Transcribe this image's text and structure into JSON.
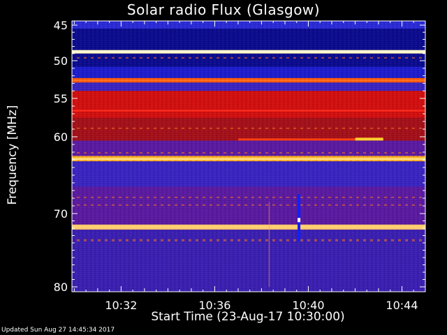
{
  "chart_data": {
    "type": "heatmap",
    "title": "Solar radio Flux (Glasgow)",
    "xlabel": "Start Time (23-Aug-17 10:30:00)",
    "ylabel": "Frequency [MHz]",
    "x_ticks": [
      "10:32",
      "10:36",
      "10:40",
      "10:44"
    ],
    "x_tick_minutes": [
      32,
      36,
      40,
      44
    ],
    "xlim_minutes": [
      29.9,
      45.0
    ],
    "y_ticks": [
      "45",
      "50",
      "55",
      "60",
      "70",
      "80"
    ],
    "y_tick_values": [
      45,
      50,
      55,
      60,
      70,
      80
    ],
    "ylim_mhz": [
      44.5,
      80.2
    ],
    "y_scale": "nonlinear (compressed at higher frequency)",
    "grid": false,
    "colormap": "blue-red-yellow-white",
    "bands": [
      {
        "from": 44.5,
        "to": 45.5,
        "level": "medium-blue"
      },
      {
        "from": 45.5,
        "to": 48.5,
        "level": "dark-blue"
      },
      {
        "from": 48.5,
        "to": 49.0,
        "level": "bright-white"
      },
      {
        "from": 49.0,
        "to": 50.8,
        "level": "dark-blue"
      },
      {
        "from": 50.8,
        "to": 52.3,
        "level": "blue"
      },
      {
        "from": 52.3,
        "to": 52.9,
        "level": "orange"
      },
      {
        "from": 52.9,
        "to": 54.0,
        "level": "blue-purple"
      },
      {
        "from": 54.0,
        "to": 57.5,
        "level": "red"
      },
      {
        "from": 57.5,
        "to": 60.5,
        "level": "dark-red"
      },
      {
        "from": 60.5,
        "to": 62.5,
        "level": "purple"
      },
      {
        "from": 62.5,
        "to": 63.2,
        "level": "orange-yellow"
      },
      {
        "from": 63.2,
        "to": 66.5,
        "level": "blue-purple"
      },
      {
        "from": 66.5,
        "to": 71.5,
        "level": "purple"
      },
      {
        "from": 71.5,
        "to": 72.2,
        "level": "orange-white"
      },
      {
        "from": 72.2,
        "to": 80.2,
        "level": "purple-blue"
      }
    ],
    "features": [
      {
        "type": "burst",
        "x_minutes": 39.6,
        "y_from": 67.5,
        "y_to": 73.8,
        "label": ""
      },
      {
        "type": "drift",
        "x_from": 37.0,
        "x_to": 43.2,
        "y_mhz": 60.3,
        "label": ""
      }
    ]
  },
  "footer": {
    "updated": "Updated Sun Aug 27 14:45:34 2017"
  },
  "colors": {
    "background": "#000000",
    "dark_blue": "#0a0a8a",
    "blue": "#1f1fd0",
    "purple": "#4b1aa3",
    "red": "#c81010",
    "orange": "#ff6a00",
    "yellow": "#ffd000",
    "white": "#ffffff"
  }
}
